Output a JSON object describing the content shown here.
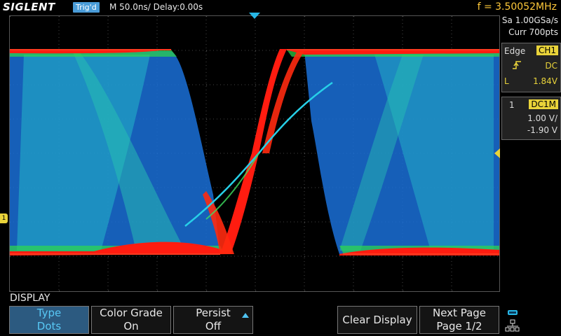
{
  "header": {
    "brand": "SIGLENT",
    "trigger_state": "Trig'd",
    "timebase": "M 50.0ns/",
    "delay": "Delay:0.00s",
    "frequency": "f = 3.50052MHz"
  },
  "acquisition": {
    "sample_rate": "Sa 1.00GSa/s",
    "memory": "Curr 700pts"
  },
  "trigger_box": {
    "type": "Edge",
    "source": "CH1",
    "slope_icon": "rising-edge-icon",
    "coupling": "DC",
    "level_label": "L",
    "level_value": "1.84V"
  },
  "channel_box": {
    "channel": "1",
    "coupling_impedance": "DC1M",
    "volts_per_div": "1.00 V/",
    "offset": "-1.90 V"
  },
  "markers": {
    "channel1_label": "1"
  },
  "menu": {
    "title": "DISPLAY",
    "softkeys": [
      {
        "line1": "Type",
        "line2": "Dots"
      },
      {
        "line1": "Color Grade",
        "line2": "On"
      },
      {
        "line1": "Persist",
        "line2": "Off"
      },
      {
        "line1": "Clear Display",
        "line2": ""
      },
      {
        "line1": "Next Page",
        "line2": "Page 1/2"
      }
    ]
  },
  "colors": {
    "accent": "#27b7e6",
    "channel1": "#e9d33a",
    "frequency_text": "#ffc93a",
    "active_softkey_bg": "#2c5a80"
  }
}
